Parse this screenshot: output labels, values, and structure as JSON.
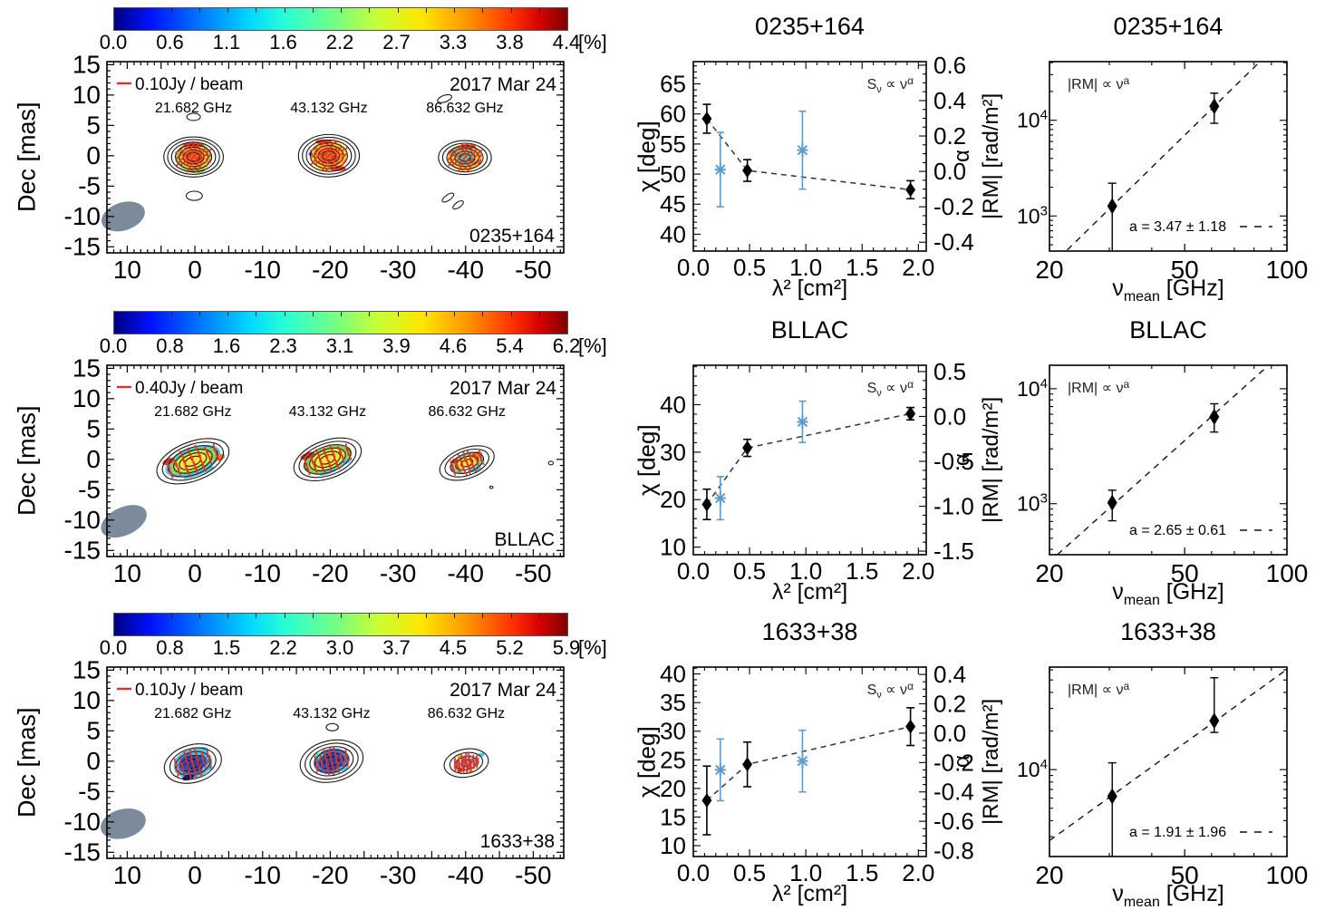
{
  "chart_data": [
    {
      "type": "map",
      "title": "0235+164",
      "date": "2017 Mar 24",
      "beam_scale_label": "0.10Jy / beam",
      "ylabel": "Dec [mas]",
      "colorbar": {
        "ticks": [
          "0.0",
          "0.6",
          "1.1",
          "1.6",
          "2.2",
          "2.7",
          "3.3",
          "3.8",
          "4.4"
        ],
        "unit": "[%]"
      },
      "xlim": [
        13,
        -54.5
      ],
      "ylim": [
        15.5,
        -16
      ],
      "xticks": [
        10,
        0,
        -10,
        -20,
        -30,
        -40,
        -50
      ],
      "yticks": [
        15,
        10,
        5,
        0,
        -5,
        -10,
        -15
      ],
      "components": [
        {
          "label": "21.682 GHz",
          "cx": 0.2,
          "cy": -0.2,
          "rot": 0,
          "contour": {
            "rx": 4.4,
            "ry": 3.3,
            "n": 7
          },
          "color": {
            "rx": 2.6,
            "ry": 2.5,
            "layers": [
              "#9ccf52",
              "#ffd934",
              "#ffa228",
              "#f2611f"
            ]
          },
          "specks": [
            {
              "dx": 0,
              "dy": 2.0,
              "rx": 1.5,
              "ry": 0.45,
              "c": "#e03a28"
            },
            {
              "dx": 0.4,
              "dy": -2.2,
              "rx": 1.3,
              "ry": 0.5,
              "c": "#86c84a"
            }
          ],
          "vec": 45
        },
        {
          "label": "43.132 GHz",
          "cx": -19.8,
          "cy": 0,
          "rot": 0,
          "contour": {
            "rx": 4.5,
            "ry": 3.5,
            "n": 7
          },
          "color": {
            "rx": 2.7,
            "ry": 2.6,
            "layers": [
              "#ffd934",
              "#ffa228",
              "#f2611f"
            ]
          },
          "specks": [
            {
              "dx": -0.8,
              "dy": 2.3,
              "rx": 1.2,
              "ry": 0.4,
              "c": "#e03a28"
            },
            {
              "dx": 1.4,
              "dy": -2.1,
              "rx": 1.1,
              "ry": 0.45,
              "c": "#e03a28"
            },
            {
              "dx": -2.7,
              "dy": 0.3,
              "rx": 0.3,
              "ry": 0.3,
              "c": "#2d56d8"
            }
          ],
          "vec": 40
        },
        {
          "label": "86.632 GHz",
          "cx": -39.9,
          "cy": -0.3,
          "rot": 0,
          "contour": {
            "rx": 3.9,
            "ry": 2.8,
            "n": 6
          },
          "color": {
            "rx": 2.5,
            "ry": 2.2,
            "layers": [
              "#ffb12c",
              "#ffe13a",
              "#8fd284",
              "#54c6a4"
            ]
          },
          "specks": [
            {
              "dx": 0.4,
              "dy": 1.8,
              "rx": 1.2,
              "ry": 0.4,
              "c": "#e03a28"
            },
            {
              "dx": -1.6,
              "dy": 1.2,
              "rx": 0.5,
              "ry": 0.35,
              "c": "#49c8e8"
            }
          ],
          "vec": 50
        }
      ],
      "extra_contours": [
        {
          "cx": 0.2,
          "cy": 6.4,
          "rx": 1.0,
          "ry": 0.6,
          "rot": 0
        },
        {
          "cx": 0.1,
          "cy": -6.6,
          "rx": 1.2,
          "ry": 0.75,
          "rot": 0
        },
        {
          "cx": -37.4,
          "cy": -6.9,
          "rx": 1.0,
          "ry": 0.45,
          "rot": -35
        },
        {
          "cx": -38.9,
          "cy": -8.1,
          "rx": 0.9,
          "ry": 0.45,
          "rot": -35
        },
        {
          "cx": -36.9,
          "cy": 9.4,
          "rx": 1.1,
          "ry": 0.55,
          "rot": -20
        }
      ],
      "beam": {
        "cx": 10.6,
        "cy": -10,
        "rx": 3.3,
        "ry": 2.3,
        "rot": -18,
        "color": "#7c8b9b"
      }
    },
    {
      "type": "scatter_dual",
      "title": "0235+164",
      "xlabel": "λ² [cm²]",
      "ylabel_left": "χ [deg]",
      "ylabel_right": "α",
      "annotation": {
        "pre": "S",
        "sub": "ν",
        "mid": " ∝ ν",
        "sup": "α"
      },
      "xlim": [
        0,
        2.07
      ],
      "xticks": [
        0,
        0.5,
        1,
        1.5,
        2
      ],
      "ylim_left": [
        68.7,
        37.2
      ],
      "yticks_left": [
        40,
        45,
        50,
        55,
        60,
        65
      ],
      "minor_left": 1,
      "ylim_right": [
        0.62,
        -0.45
      ],
      "yticks_right": [
        0.6,
        0.4,
        0.2,
        0,
        -0.2,
        -0.4
      ],
      "minor_right": 0.05,
      "chi": {
        "x": [
          0.12,
          0.48,
          1.93
        ],
        "y": [
          59.2,
          50.6,
          47.4
        ],
        "err": [
          2.4,
          1.8,
          1.5
        ]
      },
      "alpha": {
        "x": [
          0.24,
          0.97
        ],
        "y": [
          0.01,
          0.12
        ],
        "err": [
          0.21,
          0.22
        ]
      }
    },
    {
      "type": "loglog",
      "title": "0235+164",
      "ylabel": "|RM| [rad/m²]",
      "xlabel_parts": {
        "sym": "ν",
        "sub": "mean",
        "rest": " [GHz]"
      },
      "annotation": {
        "pre": "|RM| ∝ ν",
        "sup": "a"
      },
      "fit_label": "a =  3.47 ± 1.18",
      "slope": 3.47,
      "xlim": [
        20,
        100
      ],
      "xticks": [
        20,
        50,
        100
      ],
      "xminor": [
        30,
        40,
        60,
        70,
        80,
        90
      ],
      "ylim": [
        41000,
        430
      ],
      "ytick_decades": [
        4,
        3
      ],
      "points": {
        "x": [
          30.6,
          61.1
        ],
        "y": [
          1270,
          14000
        ],
        "err_hi": [
          2200,
          19200
        ],
        "err_lo": [
          null,
          9300
        ]
      }
    },
    {
      "type": "map",
      "title": "BLLAC",
      "date": "2017 Mar 24",
      "beam_scale_label": "0.40Jy / beam",
      "ylabel": "Dec [mas]",
      "colorbar": {
        "ticks": [
          "0.0",
          "0.8",
          "1.6",
          "2.3",
          "3.1",
          "3.9",
          "4.6",
          "5.4",
          "6.2"
        ],
        "unit": "[%]"
      },
      "xlim": [
        13,
        -54.5
      ],
      "ylim": [
        15.5,
        -16
      ],
      "xticks": [
        10,
        0,
        -10,
        -20,
        -30,
        -40,
        -50
      ],
      "yticks": [
        15,
        10,
        5,
        0,
        -5,
        -10,
        -15
      ],
      "components": [
        {
          "label": "21.682 GHz",
          "cx": 0.3,
          "cy": -0.3,
          "rot": -21,
          "contour": {
            "rx": 5.6,
            "ry": 3.2,
            "n": 6
          },
          "color": {
            "rx": 4.3,
            "ry": 2.2,
            "layers": [
              "#4ec9e6",
              "#8ed25c",
              "#cde43e",
              "#ffe13a"
            ]
          },
          "specks": [
            {
              "dx": -3.4,
              "dy": 1.4,
              "rx": 0.9,
              "ry": 0.5,
              "c": "#d93527"
            },
            {
              "dx": 3.9,
              "dy": -1.0,
              "rx": 0.8,
              "ry": 0.5,
              "c": "#f07c24"
            },
            {
              "dx": 0.2,
              "dy": -2.1,
              "rx": 2.4,
              "ry": 0.4,
              "c": "#49c8e8"
            }
          ],
          "vec": 90
        },
        {
          "label": "43.132 GHz",
          "cx": -19.6,
          "cy": 0,
          "rot": -20,
          "contour": {
            "rx": 5.2,
            "ry": 3.1,
            "n": 6
          },
          "color": {
            "rx": 3.8,
            "ry": 2.0,
            "layers": [
              "#8ed25c",
              "#e8e83e",
              "#ffe13a"
            ]
          },
          "specks": [
            {
              "dx": -2.6,
              "dy": 1.7,
              "rx": 1.1,
              "ry": 0.5,
              "c": "#d93527"
            },
            {
              "dx": 2.3,
              "dy": -1.4,
              "rx": 0.9,
              "ry": 0.4,
              "c": "#49c8e8"
            },
            {
              "dx": -0.5,
              "dy": -2.0,
              "rx": 1.4,
              "ry": 0.35,
              "c": "#49c8e8"
            }
          ],
          "vec": 90
        },
        {
          "label": "86.632 GHz",
          "cx": -40.2,
          "cy": -0.6,
          "rot": -20,
          "contour": {
            "rx": 4.2,
            "ry": 2.5,
            "n": 5
          },
          "color": {
            "rx": 2.6,
            "ry": 1.6,
            "layers": [
              "#6fd0b4",
              "#c4e44a",
              "#ffe13a"
            ]
          },
          "specks": [
            {
              "dx": 1.8,
              "dy": 0.7,
              "rx": 0.8,
              "ry": 0.55,
              "c": "#f07c24"
            },
            {
              "dx": -0.5,
              "dy": -0.9,
              "rx": 0.6,
              "ry": 0.5,
              "c": "#ffffff"
            },
            {
              "dx": -1.6,
              "dy": 1.0,
              "rx": 0.5,
              "ry": 0.4,
              "c": "#d93527"
            },
            {
              "dx": 0.9,
              "dy": -1.5,
              "rx": 0.9,
              "ry": 0.35,
              "c": "#49c8e8"
            }
          ],
          "vec": 90
        }
      ],
      "extra_contours": [
        {
          "cx": -52.6,
          "cy": -0.6,
          "rx": 0.35,
          "ry": 0.3,
          "rot": 0
        },
        {
          "cx": -43.8,
          "cy": -4.6,
          "rx": 0.25,
          "ry": 0.2,
          "rot": 0
        }
      ],
      "beam": {
        "cx": 10.5,
        "cy": -10.2,
        "rx": 3.6,
        "ry": 2.3,
        "rot": -25,
        "color": "#7c8b9b"
      }
    },
    {
      "type": "scatter_dual",
      "title": "BLLAC",
      "xlabel": "λ² [cm²]",
      "ylabel_left": "χ [deg]",
      "ylabel_right": "α",
      "annotation": {
        "pre": "S",
        "sub": "ν",
        "mid": " ∝ ν",
        "sup": "α"
      },
      "xlim": [
        0,
        2.07
      ],
      "xticks": [
        0,
        0.5,
        1,
        1.5,
        2
      ],
      "ylim_left": [
        48.3,
        8.4
      ],
      "yticks_left": [
        10,
        20,
        30,
        40
      ],
      "minor_left": 2,
      "ylim_right": [
        0.57,
        -1.54
      ],
      "yticks_right": [
        0.5,
        0,
        -0.5,
        -1,
        -1.5
      ],
      "minor_right": 0.1,
      "chi": {
        "x": [
          0.12,
          0.48,
          1.93
        ],
        "y": [
          19.0,
          30.9,
          38.1
        ],
        "err": [
          3.2,
          1.8,
          1.3
        ]
      },
      "alpha": {
        "x": [
          0.24,
          0.97
        ],
        "y": [
          -0.91,
          -0.06
        ],
        "err": [
          0.24,
          0.23
        ]
      }
    },
    {
      "type": "loglog",
      "title": "BLLAC",
      "ylabel": "|RM| [rad/m²]",
      "xlabel_parts": {
        "sym": "ν",
        "sub": "mean",
        "rest": " [GHz]"
      },
      "annotation": {
        "pre": "|RM| ∝ ν",
        "sup": "a"
      },
      "fit_label": "a =  2.65 ± 0.61",
      "slope": 2.65,
      "xlim": [
        20,
        100
      ],
      "xticks": [
        20,
        50,
        100
      ],
      "xminor": [
        30,
        40,
        60,
        70,
        80,
        90
      ],
      "ylim": [
        16000,
        360
      ],
      "ytick_decades": [
        4,
        3
      ],
      "points": {
        "x": [
          30.6,
          61.1
        ],
        "y": [
          1020,
          5700
        ],
        "err_hi": [
          1310,
          7400
        ],
        "err_lo": [
          710,
          4200
        ]
      }
    },
    {
      "type": "map",
      "title": "1633+38",
      "date": "2017 Mar 24",
      "beam_scale_label": "0.10Jy / beam",
      "ylabel": "Dec [mas]",
      "colorbar": {
        "ticks": [
          "0.0",
          "0.8",
          "1.5",
          "2.2",
          "3.0",
          "3.7",
          "4.5",
          "5.2",
          "5.9"
        ],
        "unit": "[%]"
      },
      "xlim": [
        13,
        -54.5
      ],
      "ylim": [
        15.5,
        -16
      ],
      "xticks": [
        10,
        0,
        -10,
        -20,
        -30,
        -40,
        -50
      ],
      "yticks": [
        15,
        10,
        5,
        0,
        -5,
        -10,
        -15
      ],
      "components": [
        {
          "label": "21.682 GHz",
          "cx": 0.3,
          "cy": -0.4,
          "rot": -15,
          "contour": {
            "rx": 4.3,
            "ry": 3.1,
            "n": 5
          },
          "color": {
            "rx": 2.9,
            "ry": 2.4,
            "layers": [
              "#52c6ea",
              "#2f62d8",
              "#1f41b4"
            ]
          },
          "specks": [
            {
              "dx": 1.4,
              "dy": 1.7,
              "rx": 1.3,
              "ry": 0.6,
              "c": "#49c8e8"
            },
            {
              "dx": -1.2,
              "dy": -2.0,
              "rx": 0.9,
              "ry": 0.45,
              "c": "#0b1c6e"
            },
            {
              "dx": 1.9,
              "dy": -1.3,
              "rx": 0.8,
              "ry": 0.5,
              "c": "#49c8e8"
            }
          ],
          "vec": 75
        },
        {
          "label": "43.132 GHz",
          "cx": -20.2,
          "cy": 0,
          "rot": -12,
          "contour": {
            "rx": 4.7,
            "ry": 3.4,
            "n": 6
          },
          "color": {
            "rx": 2.7,
            "ry": 2.1,
            "layers": [
              "#3f8ce0",
              "#2c5cd8",
              "#1f41b4"
            ]
          },
          "specks": [
            {
              "dx": -1.7,
              "dy": 1.3,
              "rx": 0.7,
              "ry": 0.5,
              "c": "#52e0c0"
            },
            {
              "dx": 1.3,
              "dy": -1.6,
              "rx": 0.9,
              "ry": 0.4,
              "c": "#49c8e8"
            }
          ],
          "vec": 80
        },
        {
          "label": "86.632 GHz",
          "cx": -40.1,
          "cy": -0.3,
          "rot": -10,
          "contour": {
            "rx": 3.3,
            "ry": 2.3,
            "n": 4
          },
          "color": {
            "rx": 1.9,
            "ry": 1.4,
            "layers": [
              "#bfeef5",
              "#5fd2ee"
            ]
          },
          "specks": [
            {
              "dx": -0.8,
              "dy": 1.3,
              "rx": 0.45,
              "ry": 0.35,
              "c": "#e8d22b"
            },
            {
              "dx": -1.1,
              "dy": -1.0,
              "rx": 0.45,
              "ry": 0.4,
              "c": "#d93527"
            },
            {
              "dx": 1.4,
              "dy": 0.3,
              "rx": 0.55,
              "ry": 0.4,
              "c": "#49c8e8"
            },
            {
              "dx": 0.4,
              "dy": -1.5,
              "rx": 0.4,
              "ry": 0.3,
              "c": "#e8d22b"
            },
            {
              "dx": 2.4,
              "dy": 0.9,
              "rx": 0.5,
              "ry": 0.35,
              "c": "#49c8e8"
            }
          ],
          "vec": 70
        }
      ],
      "extra_contours": [
        {
          "cx": -20.3,
          "cy": 5.6,
          "rx": 0.9,
          "ry": 0.6,
          "rot": 0
        }
      ],
      "beam": {
        "cx": 10.6,
        "cy": -10.3,
        "rx": 3.4,
        "ry": 2.4,
        "rot": -15,
        "color": "#7c8b9b"
      }
    },
    {
      "type": "scatter_dual",
      "title": "1633+38",
      "xlabel": "λ² [cm²]",
      "ylabel_left": "χ [deg]",
      "ylabel_right": "α",
      "annotation": {
        "pre": "S",
        "sub": "ν",
        "mid": " ∝ ν",
        "sup": "α"
      },
      "xlim": [
        0,
        2.07
      ],
      "xticks": [
        0,
        0.5,
        1,
        1.5,
        2
      ],
      "ylim_left": [
        41.2,
        8.1
      ],
      "yticks_left": [
        10,
        15,
        20,
        25,
        30,
        35,
        40
      ],
      "minor_left": 1,
      "ylim_right": [
        0.45,
        -0.84
      ],
      "yticks_right": [
        0.4,
        0.2,
        0,
        -0.2,
        -0.4,
        -0.6,
        -0.8
      ],
      "minor_right": 0.05,
      "chi": {
        "x": [
          0.12,
          0.48,
          1.93
        ],
        "y": [
          17.9,
          24.2,
          30.8
        ],
        "err": [
          6.0,
          3.9,
          3.3
        ]
      },
      "alpha": {
        "x": [
          0.24,
          0.97
        ],
        "y": [
          -0.25,
          -0.19
        ],
        "err": [
          0.21,
          0.21
        ]
      }
    },
    {
      "type": "loglog",
      "title": "1633+38",
      "ylabel": "|RM| [rad/m²]",
      "xlabel_parts": {
        "sym": "ν",
        "sub": "mean",
        "rest": " [GHz]"
      },
      "annotation": {
        "pre": "|RM| ∝ ν",
        "sup": "a"
      },
      "fit_label": "a =  1.91 ± 1.96",
      "slope": 1.91,
      "xlim": [
        20,
        100
      ],
      "xticks": [
        20,
        50,
        100
      ],
      "xminor": [
        30,
        40,
        60,
        70,
        80,
        90
      ],
      "ylim": [
        63000,
        2100
      ],
      "ytick_decades": [
        4
      ],
      "points": {
        "x": [
          30.6,
          61.1
        ],
        "y": [
          6200,
          24000
        ],
        "err_hi": [
          11300,
          52000
        ],
        "err_lo": [
          null,
          19500
        ]
      }
    }
  ],
  "style_colors": {
    "vector": "#e33225",
    "alpha_series": "#5b9bd0",
    "chi_series": "#000000",
    "beam_ellipse": "#7c8b9b",
    "contour": "#1a1a1a"
  }
}
